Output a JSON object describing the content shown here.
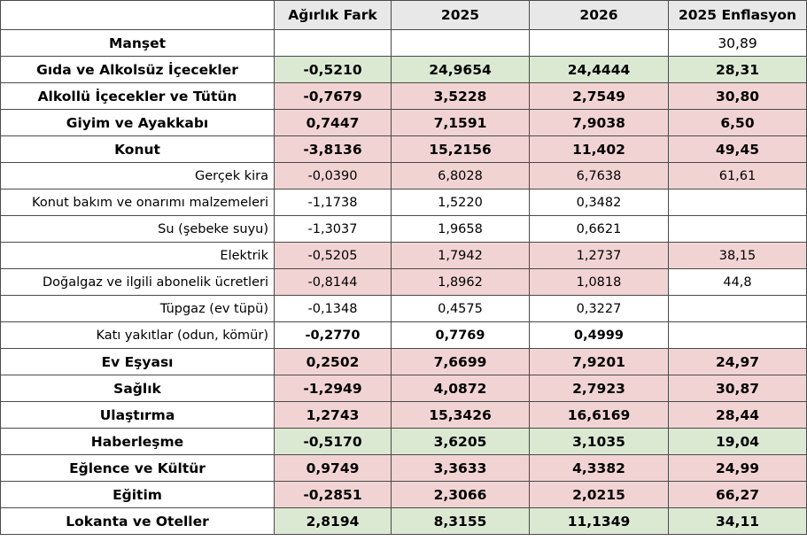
{
  "columns": [
    "",
    "Ağırlık Fark",
    "2025",
    "2026",
    "2025 Enflasyon"
  ],
  "rows": [
    {
      "label": "Manşet",
      "fark": "",
      "y2025": "",
      "y2026": "",
      "enf": "30,89"
    },
    {
      "label": "Gıda ve Alkolsüz İçecekler",
      "fark": "-0,5210",
      "y2025": "24,9654",
      "y2026": "24,4444",
      "enf": "28,31"
    },
    {
      "label": "Alkollü İçecekler ve Tütün",
      "fark": "-0,7679",
      "y2025": "3,5228",
      "y2026": "2,7549",
      "enf": "30,80"
    },
    {
      "label": "Giyim ve Ayakkabı",
      "fark": "0,7447",
      "y2025": "7,1591",
      "y2026": "7,9038",
      "enf": "6,50"
    },
    {
      "label": "Konut",
      "fark": "-3,8136",
      "y2025": "15,2156",
      "y2026": "11,402",
      "enf": "49,45"
    },
    {
      "label": "Gerçek kira",
      "fark": "-0,0390",
      "y2025": "6,8028",
      "y2026": "6,7638",
      "enf": "61,61"
    },
    {
      "label": "Konut bakım ve onarımı malzemeleri",
      "fark": "-1,1738",
      "y2025": "1,5220",
      "y2026": "0,3482",
      "enf": ""
    },
    {
      "label": "Su (şebeke suyu)",
      "fark": "-1,3037",
      "y2025": "1,9658",
      "y2026": "0,6621",
      "enf": ""
    },
    {
      "label": "Elektrik",
      "fark": "-0,5205",
      "y2025": "1,7942",
      "y2026": "1,2737",
      "enf": "38,15"
    },
    {
      "label": "Doğalgaz ve ilgili abonelik ücretleri",
      "fark": "-0,8144",
      "y2025": "1,8962",
      "y2026": "1,0818",
      "enf": "44,8"
    },
    {
      "label": "Tüpgaz (ev tüpü)",
      "fark": "-0,1348",
      "y2025": "0,4575",
      "y2026": "0,3227",
      "enf": ""
    },
    {
      "label": "Katı yakıtlar (odun, kömür)",
      "fark": "-0,2770",
      "y2025": "0,7769",
      "y2026": "0,4999",
      "enf": ""
    },
    {
      "label": "Ev Eşyası",
      "fark": "0,2502",
      "y2025": "7,6699",
      "y2026": "7,9201",
      "enf": "24,97"
    },
    {
      "label": "Sağlık",
      "fark": "-1,2949",
      "y2025": "4,0872",
      "y2026": "2,7923",
      "enf": "30,87"
    },
    {
      "label": "Ulaştırma",
      "fark": "1,2743",
      "y2025": "15,3426",
      "y2026": "16,6169",
      "enf": "28,44"
    },
    {
      "label": "Haberleşme",
      "fark": "-0,5170",
      "y2025": "3,6205",
      "y2026": "3,1035",
      "enf": "19,04"
    },
    {
      "label": "Eğlence ve Kültür",
      "fark": "0,9749",
      "y2025": "3,3633",
      "y2026": "4,3382",
      "enf": "24,99"
    },
    {
      "label": "Eğitim",
      "fark": "-0,2851",
      "y2025": "2,3066",
      "y2026": "2,0215",
      "enf": "66,27"
    },
    {
      "label": "Lokanta ve Oteller",
      "fark": "2,8194",
      "y2025": "8,3155",
      "y2026": "11,1349",
      "enf": "34,11"
    }
  ],
  "colors": {
    "pink": "#f2d3d3",
    "green": "#dbe9d3",
    "header": "#e8e8e8"
  }
}
